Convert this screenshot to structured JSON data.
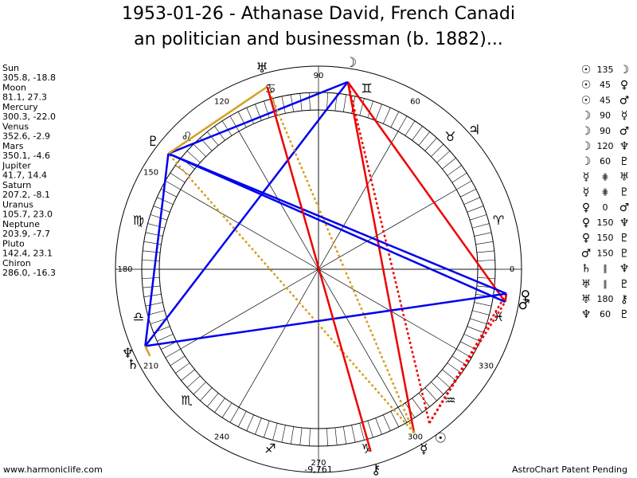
{
  "title": [
    "1953-01-26 - Athanase David, French Canadi",
    "an politician and businessman (b. 1882)..."
  ],
  "planets": [
    {
      "name": "Sun",
      "glyph": "☉",
      "position": "305.8, -18.8"
    },
    {
      "name": "Moon",
      "glyph": "☽",
      "position": "81.1, 27.3"
    },
    {
      "name": "Mercury",
      "glyph": "☿",
      "position": "300.3, -22.0"
    },
    {
      "name": "Venus",
      "glyph": "♀",
      "position": "352.6, -2.9"
    },
    {
      "name": "Mars",
      "glyph": "♂",
      "position": "350.1, -4.6"
    },
    {
      "name": "Jupiter",
      "glyph": "♃",
      "position": "41.7, 14.4"
    },
    {
      "name": "Saturn",
      "glyph": "♄",
      "position": "207.2, -8.1"
    },
    {
      "name": "Uranus",
      "glyph": "♅",
      "position": "105.7, 23.0"
    },
    {
      "name": "Neptune",
      "glyph": "♆",
      "position": "203.9, -7.7"
    },
    {
      "name": "Pluto",
      "glyph": "♇",
      "position": "142.4, 23.1"
    },
    {
      "name": "Chiron",
      "glyph": "⚷",
      "position": "286.0, -16.3"
    }
  ],
  "aspects": [
    {
      "from": "☉",
      "aspect": 135,
      "to": "☽"
    },
    {
      "from": "☉",
      "aspect": 45,
      "to": "♀"
    },
    {
      "from": "☉",
      "aspect": 45,
      "to": "♂"
    },
    {
      "from": "☽",
      "aspect": 90,
      "to": "☿"
    },
    {
      "from": "☽",
      "aspect": 90,
      "to": "♂"
    },
    {
      "from": "☽",
      "aspect": 120,
      "to": "♆"
    },
    {
      "from": "☽",
      "aspect": 60,
      "to": "♇"
    },
    {
      "from": "☿",
      "aspect": "⋕",
      "to": "♅"
    },
    {
      "from": "☿",
      "aspect": "⋕",
      "to": "♇"
    },
    {
      "from": "♀",
      "aspect": 0,
      "to": "♂"
    },
    {
      "from": "♀",
      "aspect": 150,
      "to": "♆"
    },
    {
      "from": "♀",
      "aspect": 150,
      "to": "♇"
    },
    {
      "from": "♂",
      "aspect": 150,
      "to": "♇"
    },
    {
      "from": "♄",
      "aspect": "∥",
      "to": "♆"
    },
    {
      "from": "♅",
      "aspect": "∥",
      "to": "♇"
    },
    {
      "from": "♅",
      "aspect": 180,
      "to": "⚷"
    },
    {
      "from": "♆",
      "aspect": 60,
      "to": "♇"
    }
  ],
  "degree_labels": [
    0,
    60,
    90,
    120,
    150,
    180,
    210,
    240,
    270,
    300,
    330
  ],
  "signs": [
    "♈",
    "♉",
    "♊",
    "♋",
    "♌",
    "♍",
    "♎",
    "♏",
    "♐",
    "♑",
    "♒",
    "♓"
  ],
  "bottom_value": "-9,761",
  "footer_left": "www.harmoniclife.com",
  "footer_right": "AstroChart Patent Pending"
}
